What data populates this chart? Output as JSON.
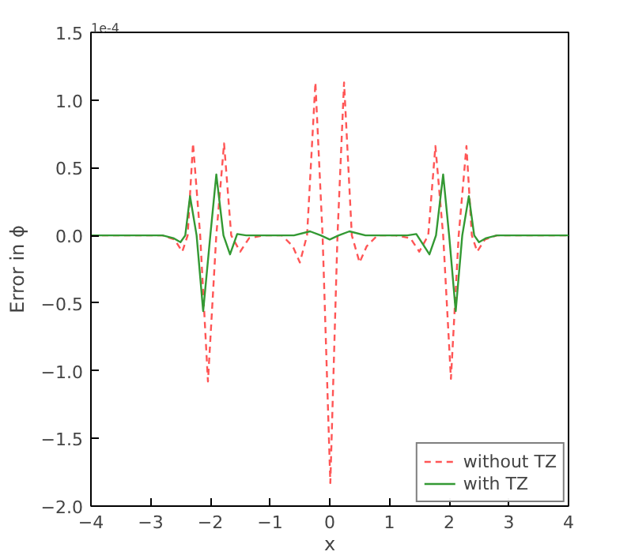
{
  "chart_data": {
    "type": "line",
    "xlabel": "x",
    "ylabel": "Error in ϕ",
    "annotations": [
      "1e-4"
    ],
    "xlim": [
      -4,
      4
    ],
    "xticks": [
      {
        "value": -4,
        "label": "−4"
      },
      {
        "value": -3,
        "label": "−3"
      },
      {
        "value": -2,
        "label": "−2"
      },
      {
        "value": -1,
        "label": "−1"
      },
      0,
      1,
      2,
      3,
      4
    ],
    "ylim": [
      -2.0,
      1.5
    ],
    "yticks": [
      {
        "value": -2.0,
        "label": "−2.0"
      },
      {
        "value": -1.5,
        "label": "−1.5"
      },
      {
        "value": -1.0,
        "label": "−1.0"
      },
      {
        "value": -0.5,
        "label": "−0.5"
      },
      {
        "value": 0,
        "label": "0.0"
      },
      {
        "value": 0.5,
        "label": "0.5"
      },
      {
        "value": 1.0,
        "label": "1.0"
      },
      {
        "value": 1.5,
        "label": "1.5"
      }
    ],
    "grid": false,
    "legend": "bottom right",
    "series": [
      {
        "name": "without TZ",
        "color": "#ff5555",
        "line_style": "dashed",
        "x": [
          -4,
          -2.8,
          -2.6,
          -2.47,
          -2.38,
          -2.29,
          -2.17,
          -2.04,
          -1.9,
          -1.77,
          -1.65,
          -1.5,
          -1.35,
          -1.1,
          -0.8,
          -0.62,
          -0.5,
          -0.38,
          -0.24,
          -0.12,
          0.01,
          0.13,
          0.24,
          0.37,
          0.5,
          0.62,
          0.8,
          1.1,
          1.35,
          1.5,
          1.65,
          1.77,
          1.9,
          2.03,
          2.16,
          2.29,
          2.38,
          2.47,
          2.6,
          2.8,
          4
        ],
        "values": [
          0,
          0,
          -0.03,
          -0.12,
          0,
          0.68,
          0,
          -1.08,
          0,
          0.68,
          0,
          -0.12,
          -0.02,
          0,
          0,
          -0.08,
          -0.2,
          0,
          1.13,
          0,
          -1.83,
          0,
          1.13,
          0,
          -0.2,
          -0.08,
          0,
          0,
          -0.02,
          -0.12,
          0,
          0.66,
          0,
          -1.06,
          0,
          0.66,
          0,
          -0.12,
          -0.03,
          0,
          0
        ]
      },
      {
        "name": "with TZ",
        "color": "#339933",
        "line_style": "solid",
        "x": [
          -4,
          -2.8,
          -2.62,
          -2.5,
          -2.42,
          -2.34,
          -2.23,
          -2.12,
          -2.0,
          -1.9,
          -1.78,
          -1.67,
          -1.55,
          -1.4,
          -0.6,
          -0.33,
          -0.15,
          0,
          0.15,
          0.33,
          0.6,
          1.3,
          1.45,
          1.67,
          1.78,
          1.9,
          2.0,
          2.11,
          2.22,
          2.33,
          2.42,
          2.5,
          2.62,
          2.8,
          4
        ],
        "values": [
          0,
          0,
          -0.02,
          -0.05,
          0,
          0.29,
          0,
          -0.56,
          0,
          0.45,
          0,
          -0.14,
          0.01,
          0,
          0,
          0.03,
          0,
          -0.03,
          0,
          0.03,
          0,
          0,
          0.01,
          -0.14,
          0,
          0.45,
          0,
          -0.56,
          0,
          0.29,
          0,
          -0.05,
          -0.02,
          0,
          0
        ]
      }
    ]
  }
}
